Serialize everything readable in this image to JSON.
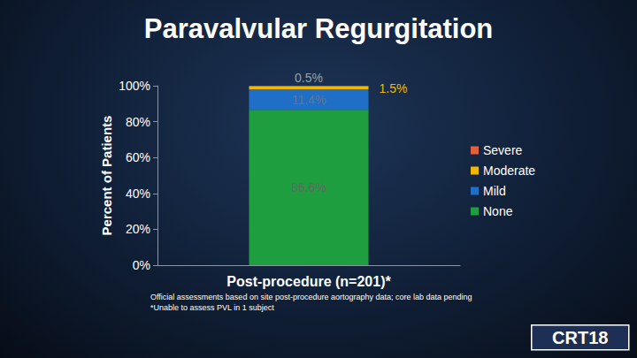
{
  "chart_data": {
    "type": "bar",
    "title": "Paravalvular Regurgitation",
    "categories": [
      "Post-procedure (n=201)*"
    ],
    "ylabel": "Percent of Patients",
    "series": [
      {
        "name": "None",
        "color": "#1e9e3e",
        "values": [
          86.6
        ],
        "value_labels": [
          "86.6%"
        ]
      },
      {
        "name": "Mild",
        "color": "#1f6fc8",
        "values": [
          11.4
        ],
        "value_labels": [
          "11.4%"
        ]
      },
      {
        "name": "Moderate",
        "color": "#f2b705",
        "values": [
          1.5
        ],
        "value_labels": [
          "1.5%"
        ]
      },
      {
        "name": "Severe",
        "color": "#e4603a",
        "values": [
          0.5
        ],
        "value_labels": [
          "0.5%"
        ]
      }
    ],
    "stacked": true,
    "data_labels": true,
    "legend": "right",
    "grid": false,
    "ylim": [
      0,
      100
    ],
    "yticks": [
      {
        "value": 0,
        "label": "0%"
      },
      {
        "value": 20,
        "label": "20%"
      },
      {
        "value": 40,
        "label": "40%"
      },
      {
        "value": 60,
        "label": "60%"
      },
      {
        "value": 80,
        "label": "80%"
      },
      {
        "value": 100,
        "label": "100%"
      }
    ],
    "annotations": [
      "Official assessments based on site post-procedure aortography data; core lab data pending",
      "*Unable to assess PVL in 1 subject",
      "CRT18"
    ]
  }
}
